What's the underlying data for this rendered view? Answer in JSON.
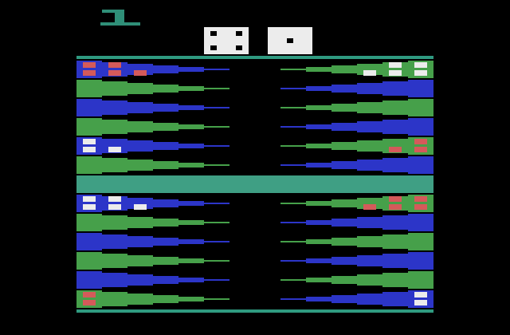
{
  "game": {
    "turn_indicator_color": "#2f8f78",
    "colors": {
      "background": "#000000",
      "rail": "#2f9a80",
      "bar": "#3f9f84",
      "blue_point": "#2c35c8",
      "green_point": "#46a04a",
      "red_checker": "#d45a5a",
      "white_checker": "#ececec",
      "die_face": "#ececec",
      "die_pip": "#000000"
    },
    "dice": [
      {
        "name": "left-die",
        "value": 4
      },
      {
        "name": "right-die",
        "value": 1
      }
    ],
    "points": {
      "left_upper": [
        "blue",
        "green",
        "blue",
        "green",
        "blue",
        "green"
      ],
      "right_upper": [
        "green",
        "blue",
        "green",
        "blue",
        "green",
        "blue"
      ],
      "left_lower": [
        "blue",
        "green",
        "blue",
        "green",
        "blue",
        "green"
      ],
      "right_lower": [
        "green",
        "blue",
        "green",
        "blue",
        "green",
        "blue"
      ]
    },
    "checkers": {
      "left_upper": [
        {
          "row": 0,
          "color": "red",
          "count": 5
        },
        {
          "row": 4,
          "color": "white",
          "count": 3
        }
      ],
      "right_upper": [
        {
          "row": 0,
          "color": "white",
          "count": 5
        },
        {
          "row": 4,
          "color": "red",
          "count": 3
        }
      ],
      "left_lower": [
        {
          "row": 0,
          "color": "white",
          "count": 5
        },
        {
          "row": 5,
          "color": "red",
          "count": 2
        }
      ],
      "right_lower": [
        {
          "row": 0,
          "color": "red",
          "count": 5
        },
        {
          "row": 5,
          "color": "white",
          "count": 2
        }
      ]
    }
  }
}
